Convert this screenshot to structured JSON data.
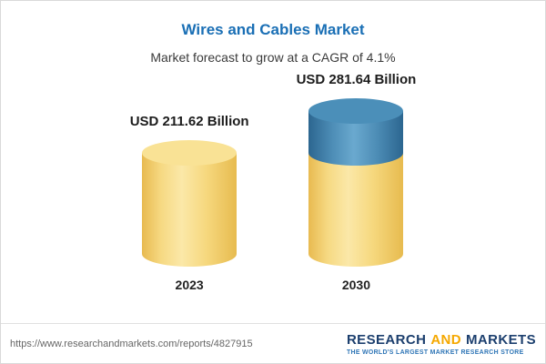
{
  "header": {
    "title": "Wires and Cables Market",
    "subtitle": "Market forecast to grow at a CAGR of 4.1%"
  },
  "chart_data": {
    "type": "bar",
    "style": "cylinder",
    "title": "Wires and Cables Market",
    "subtitle": "Market forecast to grow at a CAGR of 4.1%",
    "cagr": "4.1%",
    "unit": "USD Billion",
    "categories": [
      "2023",
      "2030"
    ],
    "values": [
      211.62,
      281.64
    ],
    "value_labels": [
      "USD 211.62 Billion",
      "USD 281.64 Billion"
    ],
    "growth_segment": {
      "bar": "2030",
      "value": 70.02,
      "meaning": "growth above 2023 level shown as blue cap"
    },
    "ylim": [
      0,
      300
    ],
    "grid": false,
    "legend": false
  },
  "footer": {
    "url": "https://www.researchandmarkets.com/reports/4827915",
    "logo": {
      "research": "RESEARCH",
      "and": "AND",
      "markets": "MARKETS",
      "tagline": "THE WORLD'S LARGEST MARKET RESEARCH STORE"
    }
  },
  "theme": {
    "title_color": "#1a6fb5",
    "bar_yellow": "#f6d87e",
    "bar_blue": "#4d8db6",
    "logo_navy": "#1c3f6e",
    "logo_orange": "#f5a800",
    "tagline_blue": "#2e75b6"
  }
}
